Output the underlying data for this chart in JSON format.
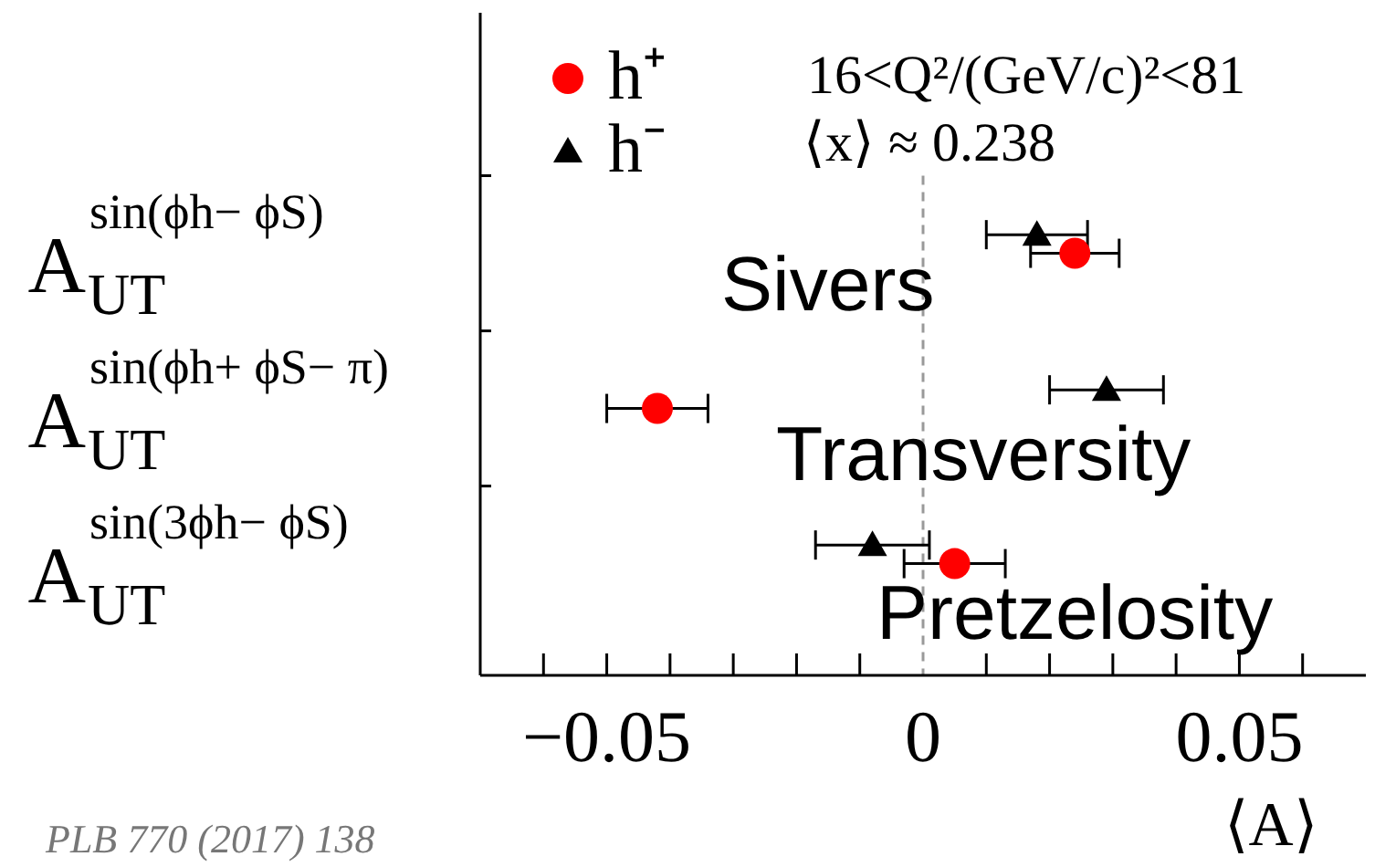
{
  "chart_data": {
    "type": "scatter",
    "orientation": "horizontal",
    "categories": [
      "A$^{sin(ϕh− ϕS)}$$_{UT}$",
      "A$^{sin(ϕh+ ϕS− π)}$$_{UT}$",
      "A$^{sin(3ϕh− ϕS)}$$_{UT}$"
    ],
    "series": [
      {
        "name": "h⁺",
        "color": "#ff0000",
        "marker": "circle",
        "values": [
          0.024,
          -0.042,
          0.005
        ],
        "errors": [
          0.007,
          0.008,
          0.008
        ]
      },
      {
        "name": "h⁻",
        "color": "#000000",
        "marker": "triangle",
        "values": [
          0.018,
          0.029,
          -0.008
        ],
        "errors": [
          0.008,
          0.009,
          0.009
        ]
      }
    ],
    "xlim": [
      -0.07,
      0.07
    ],
    "xticks": [
      {
        "value": -0.06,
        "label": null
      },
      {
        "value": -0.05,
        "label": "−0.05"
      },
      {
        "value": -0.04,
        "label": null
      },
      {
        "value": -0.03,
        "label": null
      },
      {
        "value": -0.02,
        "label": null
      },
      {
        "value": -0.01,
        "label": null
      },
      0,
      {
        "value": 0.01,
        "label": null
      },
      {
        "value": 0.02,
        "label": null
      },
      {
        "value": 0.03,
        "label": null
      },
      {
        "value": 0.04,
        "label": null
      },
      0.05,
      {
        "value": 0.06,
        "label": null
      }
    ],
    "xlabel": "⟨A⟩",
    "legend": "top left",
    "ref_lines": [
      {
        "axis": "x",
        "value": 0,
        "color": "#999999",
        "line_style": "dashed"
      }
    ],
    "annotations": [
      "16<Q²/(GeV/c)²<81",
      "⟨x⟩ ≈ 0.238",
      "Sivers",
      "Transversity",
      "Pretzelosity",
      "PLB 770 (2017) 138"
    ]
  }
}
